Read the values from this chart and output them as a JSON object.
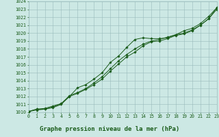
{
  "bg_color": "#cce8e4",
  "plot_bg_color": "#cce8e4",
  "grid_color": "#99bbbb",
  "line_color": "#1a5c1a",
  "marker_color": "#1a5c1a",
  "title": "Graphe pression niveau de la mer (hPa)",
  "xlim": [
    0,
    23
  ],
  "ylim": [
    1010,
    1024
  ],
  "x_ticks": [
    0,
    1,
    2,
    3,
    4,
    5,
    6,
    7,
    8,
    9,
    10,
    11,
    12,
    13,
    14,
    15,
    16,
    17,
    18,
    19,
    20,
    21,
    22,
    23
  ],
  "y_ticks": [
    1010,
    1011,
    1012,
    1013,
    1014,
    1015,
    1016,
    1017,
    1018,
    1019,
    1020,
    1021,
    1022,
    1023,
    1024
  ],
  "series1_x": [
    0,
    1,
    2,
    3,
    4,
    5,
    6,
    7,
    8,
    9,
    10,
    11,
    12,
    13,
    14,
    15,
    16,
    17,
    18,
    19,
    20,
    21,
    22,
    23
  ],
  "series1_y": [
    1010.1,
    1010.4,
    1010.5,
    1010.8,
    1011.1,
    1012.0,
    1013.1,
    1013.5,
    1014.2,
    1015.0,
    1016.3,
    1017.1,
    1018.2,
    1019.2,
    1019.4,
    1019.3,
    1019.3,
    1019.4,
    1019.8,
    1020.3,
    1020.6,
    1021.2,
    1022.1,
    1023.2
  ],
  "series2_x": [
    0,
    1,
    2,
    3,
    4,
    5,
    6,
    7,
    8,
    9,
    10,
    11,
    12,
    13,
    14,
    15,
    16,
    17,
    18,
    19,
    20,
    21,
    22,
    23
  ],
  "series2_y": [
    1010.1,
    1010.4,
    1010.4,
    1010.7,
    1011.1,
    1012.1,
    1012.5,
    1013.0,
    1013.7,
    1014.5,
    1015.5,
    1016.5,
    1017.3,
    1018.0,
    1018.6,
    1019.0,
    1019.2,
    1019.5,
    1019.8,
    1020.0,
    1020.4,
    1021.0,
    1021.8,
    1023.2
  ],
  "series3_x": [
    0,
    1,
    2,
    3,
    4,
    5,
    6,
    7,
    8,
    9,
    10,
    11,
    12,
    13,
    14,
    15,
    16,
    17,
    18,
    19,
    20,
    21,
    22,
    23
  ],
  "series3_y": [
    1010.1,
    1010.3,
    1010.4,
    1010.6,
    1011.0,
    1012.0,
    1012.4,
    1012.9,
    1013.5,
    1014.2,
    1015.2,
    1016.1,
    1017.0,
    1017.6,
    1018.4,
    1018.9,
    1019.0,
    1019.3,
    1019.7,
    1019.9,
    1020.3,
    1021.0,
    1021.8,
    1023.0
  ],
  "title_color": "#1a5c1a",
  "title_bg": "#88bb99",
  "tick_color": "#1a5c1a",
  "tick_fontsize": 4.8,
  "title_fontsize": 6.5,
  "linewidth": 0.7,
  "markersize": 1.8
}
